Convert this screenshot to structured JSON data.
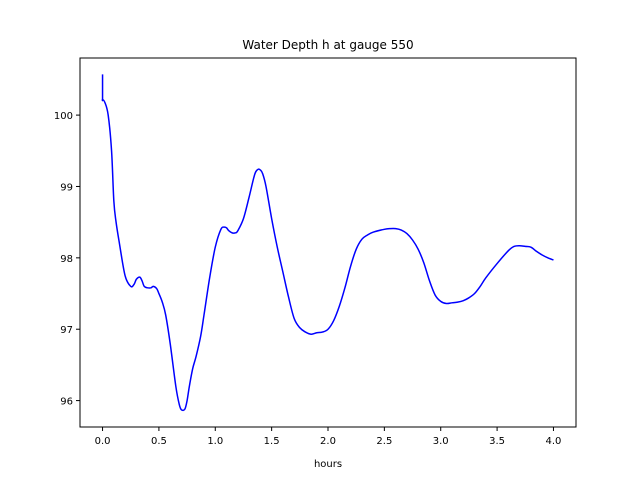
{
  "chart_data": {
    "type": "line",
    "title": "Water Depth h at gauge 550",
    "xlabel": "hours",
    "ylabel": "",
    "xlim": [
      -0.2,
      4.2
    ],
    "ylim": [
      95.63,
      100.8
    ],
    "xticks": [
      0.0,
      0.5,
      1.0,
      1.5,
      2.0,
      2.5,
      3.0,
      3.5,
      4.0
    ],
    "xtick_labels": [
      "0.0",
      "0.5",
      "1.0",
      "1.5",
      "2.0",
      "2.5",
      "3.0",
      "3.5",
      "4.0"
    ],
    "yticks": [
      96,
      97,
      98,
      99,
      100
    ],
    "ytick_labels": [
      "96",
      "97",
      "98",
      "99",
      "100"
    ],
    "grid": false,
    "series": [
      {
        "name": "",
        "color": "#0000ff",
        "x": [
          0.0,
          0.0,
          0.0,
          0.02,
          0.05,
          0.08,
          0.1,
          0.12,
          0.15,
          0.2,
          0.25,
          0.28,
          0.3,
          0.33,
          0.35,
          0.37,
          0.4,
          0.43,
          0.45,
          0.48,
          0.5,
          0.53,
          0.56,
          0.6,
          0.65,
          0.68,
          0.7,
          0.73,
          0.75,
          0.77,
          0.8,
          0.83,
          0.87,
          0.9,
          0.95,
          1.0,
          1.05,
          1.08,
          1.1,
          1.12,
          1.15,
          1.18,
          1.2,
          1.25,
          1.3,
          1.35,
          1.38,
          1.4,
          1.42,
          1.45,
          1.5,
          1.55,
          1.6,
          1.65,
          1.7,
          1.75,
          1.8,
          1.85,
          1.9,
          1.95,
          2.0,
          2.05,
          2.1,
          2.15,
          2.2,
          2.25,
          2.3,
          2.35,
          2.4,
          2.5,
          2.55,
          2.6,
          2.65,
          2.7,
          2.75,
          2.8,
          2.85,
          2.9,
          2.95,
          3.0,
          3.05,
          3.1,
          3.15,
          3.2,
          3.25,
          3.3,
          3.35,
          3.4,
          3.5,
          3.6,
          3.65,
          3.7,
          3.75,
          3.8,
          3.85,
          3.9,
          3.95,
          4.0
        ],
        "y": [
          100.57,
          100.23,
          100.22,
          100.18,
          100.0,
          99.5,
          98.8,
          98.5,
          98.2,
          97.75,
          97.6,
          97.63,
          97.7,
          97.73,
          97.68,
          97.6,
          97.58,
          97.58,
          97.6,
          97.57,
          97.5,
          97.38,
          97.2,
          96.8,
          96.2,
          95.95,
          95.87,
          95.88,
          96.0,
          96.2,
          96.45,
          96.62,
          96.9,
          97.2,
          97.72,
          98.15,
          98.4,
          98.43,
          98.42,
          98.38,
          98.35,
          98.35,
          98.38,
          98.55,
          98.85,
          99.17,
          99.24,
          99.23,
          99.18,
          99.0,
          98.55,
          98.15,
          97.8,
          97.45,
          97.15,
          97.02,
          96.96,
          96.93,
          96.95,
          96.96,
          97.0,
          97.12,
          97.32,
          97.58,
          97.88,
          98.12,
          98.26,
          98.32,
          98.36,
          98.4,
          98.41,
          98.41,
          98.39,
          98.34,
          98.25,
          98.12,
          97.93,
          97.68,
          97.48,
          97.39,
          97.36,
          97.37,
          97.38,
          97.4,
          97.44,
          97.5,
          97.6,
          97.72,
          97.92,
          98.1,
          98.16,
          98.17,
          98.16,
          98.15,
          98.09,
          98.04,
          98.0,
          97.97
        ]
      }
    ]
  }
}
